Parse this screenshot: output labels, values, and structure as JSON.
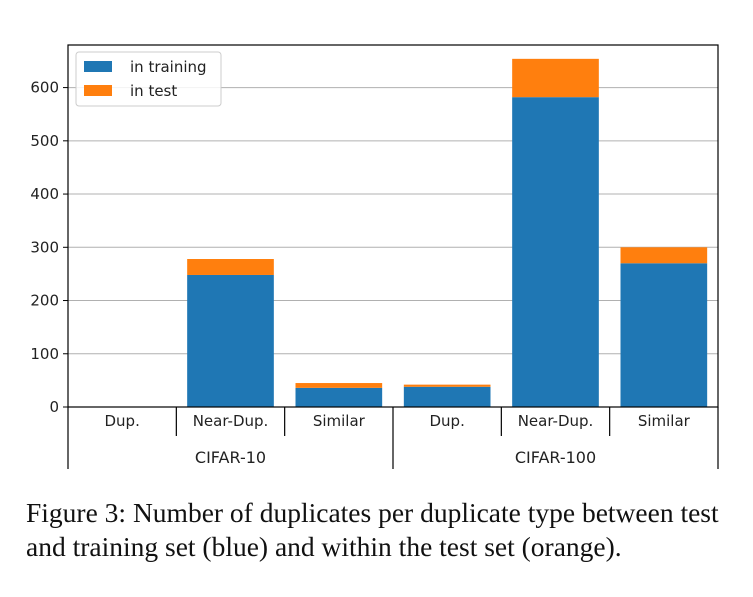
{
  "chart_data": {
    "type": "bar",
    "stacked": true,
    "groups": [
      {
        "label": "CIFAR-10",
        "categories": [
          "Dup.",
          "Near-Dup.",
          "Similar"
        ]
      },
      {
        "label": "CIFAR-100",
        "categories": [
          "Dup.",
          "Near-Dup.",
          "Similar"
        ]
      }
    ],
    "series": [
      {
        "name": "in training",
        "color": "#1f77b4",
        "values": [
          0,
          248,
          36,
          38,
          582,
          270
        ]
      },
      {
        "name": "in test",
        "color": "#ff7f0e",
        "values": [
          0,
          30,
          9,
          4,
          72,
          30
        ]
      }
    ],
    "ylim": [
      0,
      680
    ],
    "yticks": [
      0,
      100,
      200,
      300,
      400,
      500,
      600
    ],
    "grid": "y",
    "legend_position": "top-left"
  },
  "caption": "Figure 3: Number of duplicates per duplicate type between test and training set (blue) and within the test set (orange)."
}
